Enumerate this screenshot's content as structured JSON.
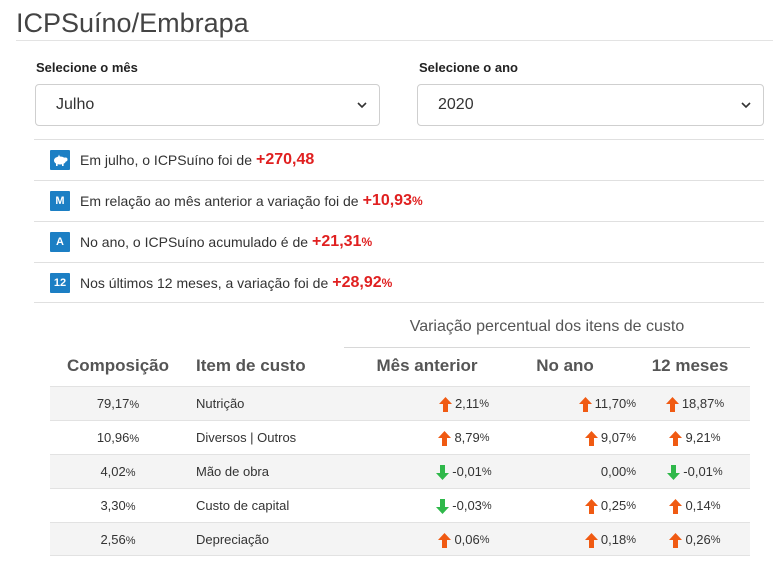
{
  "title": "ICPSuíno/Embrapa",
  "selectors": {
    "month": {
      "label": "Selecione o mês",
      "value": "Julho"
    },
    "year": {
      "label": "Selecione o ano",
      "value": "2020"
    }
  },
  "info": [
    {
      "badge": "pig-icon",
      "text": "Em julho, o ICPSuíno foi de",
      "value": "+270,48",
      "unit": ""
    },
    {
      "badge": "M",
      "text": "Em relação ao mês anterior a variação foi de",
      "value": "+10,93",
      "unit": "%"
    },
    {
      "badge": "A",
      "text": "No ano, o ICPSuíno acumulado é de",
      "value": "+21,31",
      "unit": "%"
    },
    {
      "badge": "12",
      "text": "Nos últimos 12 meses, a variação foi de",
      "value": "+28,92",
      "unit": "%"
    }
  ],
  "table": {
    "group_header": "Variação percentual dos itens de custo",
    "columns": [
      "Composição",
      "Item de custo",
      "Mês anterior",
      "No ano",
      "12 meses"
    ],
    "rows": [
      {
        "comp": "79,17",
        "item": "Nutrição",
        "mes": {
          "v": "2,11",
          "dir": "up"
        },
        "ano": {
          "v": "11,70",
          "dir": "up"
        },
        "m12": {
          "v": "18,87",
          "dir": "up"
        }
      },
      {
        "comp": "10,96",
        "item": "Diversos | Outros",
        "mes": {
          "v": "8,79",
          "dir": "up"
        },
        "ano": {
          "v": "9,07",
          "dir": "up"
        },
        "m12": {
          "v": "9,21",
          "dir": "up"
        }
      },
      {
        "comp": "4,02",
        "item": "Mão de obra",
        "mes": {
          "v": "-0,01",
          "dir": "down"
        },
        "ano": {
          "v": "0,00",
          "dir": "none"
        },
        "m12": {
          "v": "-0,01",
          "dir": "down"
        }
      },
      {
        "comp": "3,30",
        "item": "Custo de capital",
        "mes": {
          "v": "-0,03",
          "dir": "down"
        },
        "ano": {
          "v": "0,25",
          "dir": "up"
        },
        "m12": {
          "v": "0,14",
          "dir": "up"
        }
      },
      {
        "comp": "2,56",
        "item": "Depreciação",
        "mes": {
          "v": "0,06",
          "dir": "up"
        },
        "ano": {
          "v": "0,18",
          "dir": "up"
        },
        "m12": {
          "v": "0,26",
          "dir": "up"
        }
      }
    ],
    "pct_symbol": "%"
  },
  "colors": {
    "up": "#f05a12",
    "down": "#2fb84a",
    "highlight": "#e02020",
    "badge": "#1c7fc4"
  }
}
